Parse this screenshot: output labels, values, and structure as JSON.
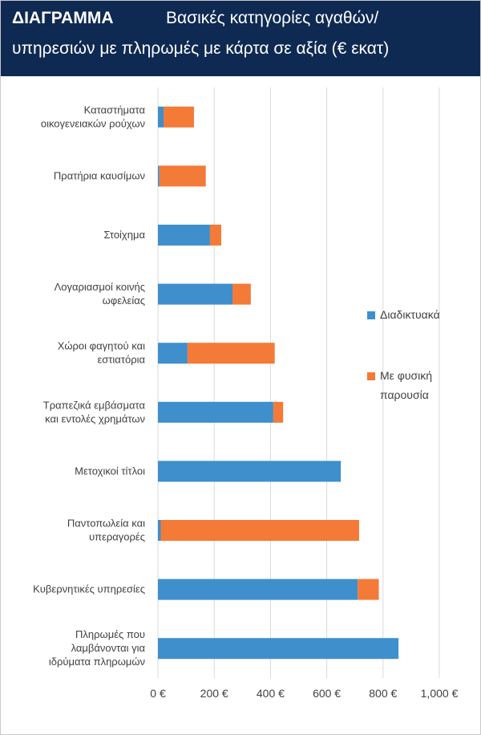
{
  "header": {
    "tag": "ΔΙΑΓΡΑΜΜΑ",
    "title_line1": "Βασικές κατηγορίες αγαθών/",
    "title_line2": "υπηρεσιών με πληρωμές με κάρτα σε αξία (€ εκατ)"
  },
  "colors": {
    "online": "#3e8fcb",
    "physical": "#f47a38",
    "header_bg": "#0f2a52",
    "grid": "#d9d9d9"
  },
  "chart_data": {
    "type": "bar",
    "orientation": "horizontal",
    "stacked": true,
    "categories": [
      [
        "Καταστήματα",
        "οικογενειακών ρούχων"
      ],
      [
        "Πρατήρια καυσίμων"
      ],
      [
        "Στοίχημα"
      ],
      [
        "Λογαριασμοί κοινής",
        "ωφελείας"
      ],
      [
        "Χώροι φαγητού και",
        "εστιατόρια"
      ],
      [
        "Τραπεζικά εμβάσματα",
        "και εντολές χρημάτων"
      ],
      [
        "Μετοχικοί τίτλοι"
      ],
      [
        "Παντοπωλεία και",
        "υπεραγορές"
      ],
      [
        "Κυβερνητικές υπηρεσίες"
      ],
      [
        "Πληρωμές που",
        "λαμβάνονται για",
        "ιδρύματα πληρωμών"
      ]
    ],
    "series": [
      {
        "name": "Διαδικτυακά",
        "values": [
          20,
          5,
          185,
          265,
          105,
          410,
          650,
          10,
          710,
          855
        ]
      },
      {
        "name": "Με φυσική παρουσία",
        "values": [
          108,
          165,
          40,
          65,
          310,
          35,
          0,
          705,
          75,
          0
        ]
      }
    ],
    "xlim": [
      0,
      1000
    ],
    "xticks": [
      "0 €",
      "200 €",
      "400 €",
      "600 €",
      "800 €",
      "1,000 €"
    ],
    "grid": true,
    "legend_position": "right",
    "legend": [
      [
        "Διαδικτυακά"
      ],
      [
        "Με φυσική",
        "παρουσία"
      ]
    ]
  }
}
